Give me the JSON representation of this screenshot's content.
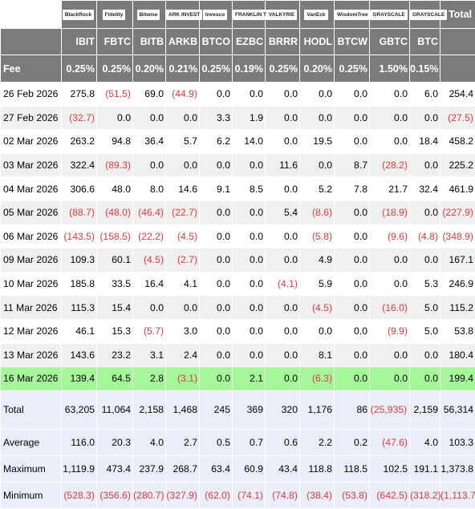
{
  "issuers": [
    "BlackRock",
    "Fidelity",
    "Bitwise",
    "ARK INVEST",
    "Invesco",
    "FRANKLIN TEMPLETON",
    "VALKYRIE",
    "VanEck",
    "WisdomTree",
    "GRAYSCALE",
    "GRAYSCALE"
  ],
  "total_header": "Total",
  "tickers": [
    "IBIT",
    "FBTC",
    "BITB",
    "ARKB",
    "BTCO",
    "EZBC",
    "BRRR",
    "HODL",
    "BTCW",
    "GBTC",
    "BTC"
  ],
  "fee_label": "Fee",
  "fees": [
    "0.25%",
    "0.25%",
    "0.20%",
    "0.21%",
    "0.25%",
    "0.19%",
    "0.25%",
    "0.20%",
    "0.25%",
    "1.50%",
    "0.15%"
  ],
  "rows": [
    {
      "date": "26 Feb 2026",
      "values": [
        "275.8",
        "(51.5)",
        "69.0",
        "(44.9)",
        "0.0",
        "0.0",
        "0.0",
        "0.0",
        "0.0",
        "0.0",
        "6.0"
      ],
      "total": "254.4"
    },
    {
      "date": "27 Feb 2026",
      "values": [
        "(32.7)",
        "0.0",
        "0.0",
        "0.0",
        "3.3",
        "1.9",
        "0.0",
        "0.0",
        "0.0",
        "0.0",
        "0.0"
      ],
      "total": "(27.5)"
    },
    {
      "date": "02 Mar 2026",
      "values": [
        "263.2",
        "94.8",
        "36.4",
        "5.7",
        "6.2",
        "14.0",
        "0.0",
        "19.5",
        "0.0",
        "0.0",
        "18.4"
      ],
      "total": "458.2"
    },
    {
      "date": "03 Mar 2026",
      "values": [
        "322.4",
        "(89.3)",
        "0.0",
        "0.0",
        "0.0",
        "0.0",
        "11.6",
        "0.0",
        "8.7",
        "(28.2)",
        "0.0"
      ],
      "total": "225.2"
    },
    {
      "date": "04 Mar 2026",
      "values": [
        "306.6",
        "48.0",
        "8.0",
        "14.6",
        "9.1",
        "8.5",
        "0.0",
        "5.2",
        "7.8",
        "21.7",
        "32.4"
      ],
      "total": "461.9"
    },
    {
      "date": "05 Mar 2026",
      "values": [
        "(88.7)",
        "(48.0)",
        "(46.4)",
        "(22.7)",
        "0.0",
        "0.0",
        "5.4",
        "(8.6)",
        "0.0",
        "(18.9)",
        "0.0"
      ],
      "total": "(227.9)"
    },
    {
      "date": "06 Mar 2026",
      "values": [
        "(143.5)",
        "(158.5)",
        "(22.2)",
        "(4.5)",
        "0.0",
        "0.0",
        "0.0",
        "(5.8)",
        "0.0",
        "(9.6)",
        "(4.8)"
      ],
      "total": "(348.9)"
    },
    {
      "date": "09 Mar 2026",
      "values": [
        "109.3",
        "60.1",
        "(4.5)",
        "(2.7)",
        "0.0",
        "0.0",
        "0.0",
        "4.9",
        "0.0",
        "0.0",
        "0.0"
      ],
      "total": "167.1"
    },
    {
      "date": "10 Mar 2026",
      "values": [
        "185.8",
        "33.5",
        "16.4",
        "4.1",
        "0.0",
        "0.0",
        "(4.1)",
        "5.9",
        "0.0",
        "0.0",
        "5.3"
      ],
      "total": "246.9"
    },
    {
      "date": "11 Mar 2026",
      "values": [
        "115.3",
        "15.4",
        "0.0",
        "0.0",
        "0.0",
        "0.0",
        "0.0",
        "(4.5)",
        "0.0",
        "(16.0)",
        "5.0"
      ],
      "total": "115.2"
    },
    {
      "date": "12 Mar 2026",
      "values": [
        "46.1",
        "15.3",
        "(5.7)",
        "3.0",
        "0.0",
        "0.0",
        "0.0",
        "0.0",
        "0.0",
        "(9.9)",
        "5.0"
      ],
      "total": "53.8"
    },
    {
      "date": "13 Mar 2026",
      "values": [
        "143.6",
        "23.2",
        "3.1",
        "2.4",
        "0.0",
        "0.0",
        "0.0",
        "8.1",
        "0.0",
        "0.0",
        "0.0"
      ],
      "total": "180.4"
    },
    {
      "date": "16 Mar 2026",
      "values": [
        "139.4",
        "64.5",
        "2.8",
        "(3.1)",
        "0.0",
        "2.1",
        "0.0",
        "(6.3)",
        "0.0",
        "0.0",
        "0.0"
      ],
      "total": "199.4",
      "highlight": true
    }
  ],
  "summary": [
    {
      "label": "Total",
      "values": [
        "63,205",
        "11,064",
        "2,158",
        "1,468",
        "245",
        "369",
        "320",
        "1,176",
        "86",
        "(25,935)",
        "2,159"
      ],
      "total": "56,314"
    },
    {
      "label": "Average",
      "values": [
        "116.0",
        "20.3",
        "4.0",
        "2.7",
        "0.5",
        "0.7",
        "0.6",
        "2.2",
        "0.2",
        "(47.6)",
        "4.0"
      ],
      "total": "103.3"
    },
    {
      "label": "Maximum",
      "values": [
        "1,119.9",
        "473.4",
        "237.9",
        "268.7",
        "63.4",
        "60.9",
        "43.4",
        "118.8",
        "118.5",
        "102.5",
        "191.1"
      ],
      "total": "1,373.8"
    },
    {
      "label": "Minimum",
      "values": [
        "(528.3)",
        "(356.6)",
        "(280.7)",
        "(327.9)",
        "(62.0)",
        "(74.1)",
        "(74.8)",
        "(38.4)",
        "(53.8)",
        "(642.5)",
        "(318.2)"
      ],
      "total": "(1,113.7)"
    }
  ],
  "colors": {
    "header_bg": "#7b7b7b",
    "negative": "#e0393e",
    "highlight": "#a6f799",
    "stripe": "#f0f0f0",
    "summary_bg": "#e9eef8"
  }
}
